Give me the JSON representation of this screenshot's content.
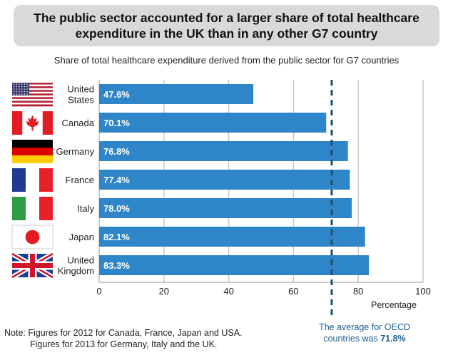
{
  "title": "The public sector accounted for a larger share of total healthcare expenditure in the UK than in any other G7 country",
  "subtitle": "Share of total healthcare expenditure derived from the public sector for G7 countries",
  "note": {
    "line1": "Note: Figures for 2012 for Canada, France, Japan and USA.",
    "line2": "Figures for 2013 for Germany, Italy and the UK."
  },
  "average_note": {
    "text": "The average for OECD countries was ",
    "value": "71.8%"
  },
  "colors": {
    "bar": "#2e86c8",
    "average_line": "#1f4e6b",
    "grid": "#c8c8c8"
  },
  "chart_data": {
    "type": "bar",
    "orientation": "horizontal",
    "categories": [
      "United States",
      "Canada",
      "Germany",
      "France",
      "Italy",
      "Japan",
      "United Kingdom"
    ],
    "category_lines": [
      [
        "United",
        "States"
      ],
      [
        "Canada"
      ],
      [
        "Germany"
      ],
      [
        "France"
      ],
      [
        "Italy"
      ],
      [
        "Japan"
      ],
      [
        "United",
        "Kingdom"
      ]
    ],
    "values": [
      47.6,
      70.1,
      76.8,
      77.4,
      78.0,
      82.1,
      83.3
    ],
    "value_labels": [
      "47.6%",
      "70.1%",
      "76.8%",
      "77.4%",
      "78.0%",
      "82.1%",
      "83.3%"
    ],
    "flags": [
      "usa-flag",
      "canada-flag",
      "germany-flag",
      "france-flag",
      "italy-flag",
      "japan-flag",
      "uk-flag"
    ],
    "xlabel": "Percentage",
    "xlim": [
      0,
      100
    ],
    "xticks": [
      0,
      20,
      40,
      60,
      80,
      100
    ],
    "reference_line": {
      "value": 71.8,
      "style": "dashed"
    },
    "grid": true
  }
}
